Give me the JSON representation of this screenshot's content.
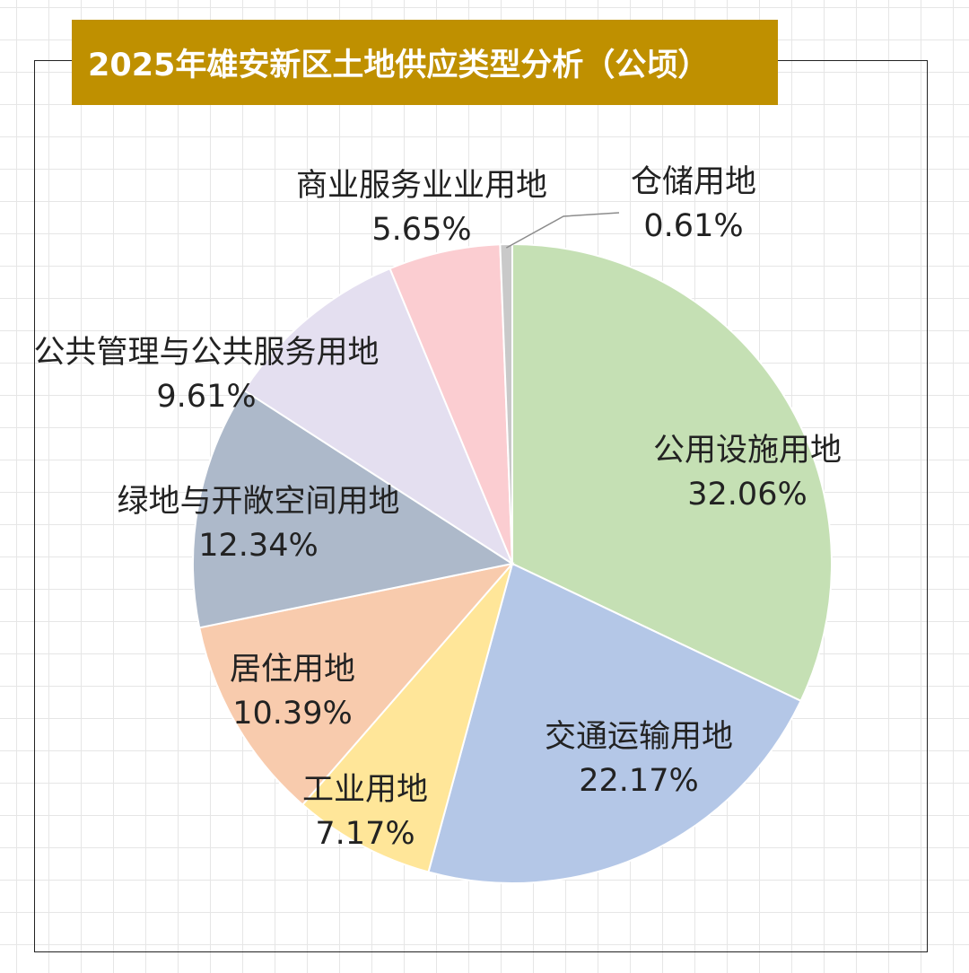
{
  "chart_data": {
    "type": "pie",
    "title": "2025年雄安新区土地供应类型分析（公顷）",
    "slices": [
      {
        "label": "公用设施用地",
        "value": 32.06,
        "value_label": "32.06%",
        "color": "#c5e0b4"
      },
      {
        "label": "交通运输用地",
        "value": 22.17,
        "value_label": "22.17%",
        "color": "#b4c7e7"
      },
      {
        "label": "工业用地",
        "value": 7.17,
        "value_label": "7.17%",
        "color": "#ffe699"
      },
      {
        "label": "居住用地",
        "value": 10.39,
        "value_label": "10.39%",
        "color": "#f8cbad"
      },
      {
        "label": "绿地与开敞空间用地",
        "value": 12.34,
        "value_label": "12.34%",
        "color": "#adb9ca"
      },
      {
        "label": "公共管理与公共服务用地",
        "value": 9.61,
        "value_label": "9.61%",
        "color": "#e4dff0"
      },
      {
        "label": "商业服务业业用地",
        "value": 5.65,
        "value_label": "5.65%",
        "color": "#fbcdd1"
      },
      {
        "label": "仓储用地",
        "value": 0.61,
        "value_label": "0.61%",
        "color": "#c9c9c9"
      }
    ],
    "start_angle": "12 o'clock",
    "direction": "clockwise",
    "legend": "none",
    "grid": true
  },
  "colors": {
    "title_background": "#bf9000",
    "title_text": "#ffffff",
    "slice_border": "#ffffff",
    "frame": "#222222",
    "grid": "#e6e6e6"
  }
}
